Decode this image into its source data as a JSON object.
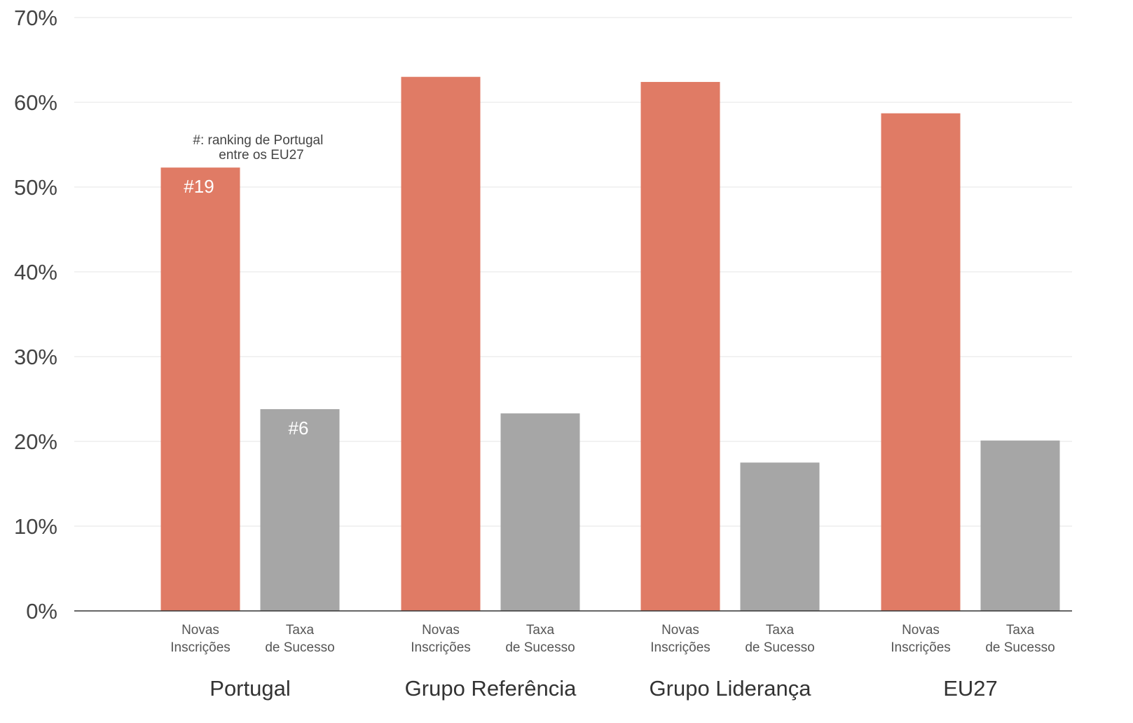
{
  "chart_data": {
    "type": "bar",
    "groups": [
      "Portugal",
      "Grupo Referência",
      "Grupo Liderança",
      "EU27"
    ],
    "bar_categories": [
      [
        "Novas",
        "Inscrições"
      ],
      [
        "Taxa",
        "de Sucesso"
      ]
    ],
    "series": [
      {
        "category": "Novas Inscrições",
        "values": [
          52.3,
          63.0,
          62.4,
          58.7
        ],
        "color": "#e07b65"
      },
      {
        "category": "Taxa de Sucesso",
        "values": [
          23.8,
          23.3,
          17.5,
          20.1
        ],
        "color": "#a6a6a6"
      }
    ],
    "bar_labels": [
      {
        "group": 0,
        "series": 0,
        "text": "#19"
      },
      {
        "group": 0,
        "series": 1,
        "text": "#6"
      }
    ],
    "annotation": [
      "#: ranking de Portugal",
      "entre os EU27"
    ],
    "yticks": [
      "0%",
      "10%",
      "20%",
      "30%",
      "40%",
      "50%",
      "60%",
      "70%"
    ],
    "ylim": [
      0,
      70
    ],
    "grid": true,
    "axis_color": "#333333",
    "grid_color": "#eeeeee"
  }
}
